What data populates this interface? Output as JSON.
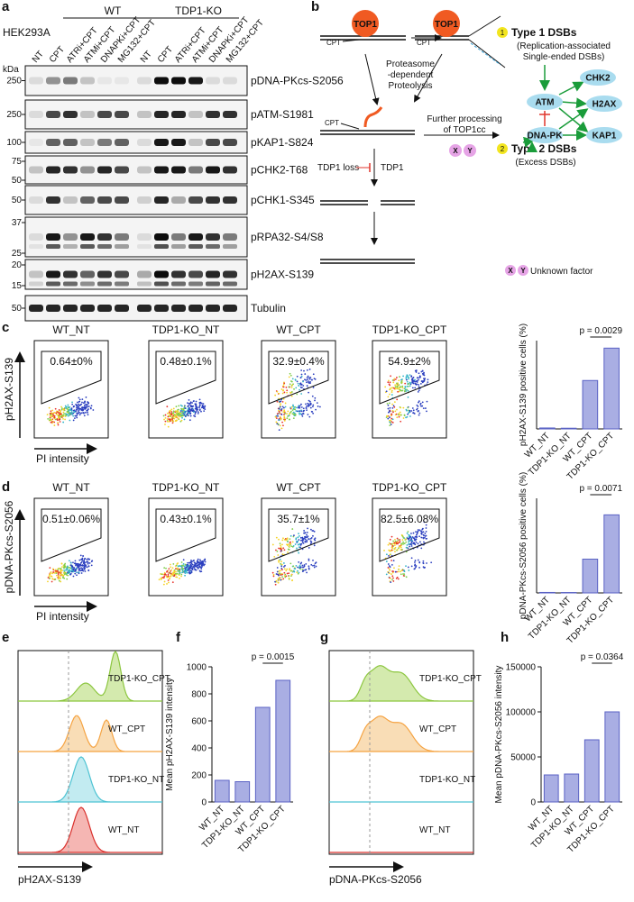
{
  "panel_labels": [
    "a",
    "b",
    "c",
    "d",
    "e",
    "f",
    "g",
    "h"
  ],
  "blot": {
    "cell_line": "HEK293A",
    "groups": [
      "WT",
      "TDP1-KO"
    ],
    "lanes": [
      "NT",
      "CPT",
      "ATRi+CPT",
      "ATMi+CPT",
      "DNAPKi+CPT",
      "MG132+CPT"
    ],
    "kda_label": "kDa",
    "rows": [
      {
        "antibody": "pDNA-PKcs-S2056",
        "markers": [
          "250"
        ]
      },
      {
        "antibody": "pATM-S1981",
        "markers": [
          "250"
        ]
      },
      {
        "antibody": "pKAP1-S824",
        "markers": [
          "100"
        ]
      },
      {
        "antibody": "pCHK2-T68",
        "markers": [
          "75",
          "50"
        ]
      },
      {
        "antibody": "pCHK1-S345",
        "markers": [
          "50"
        ]
      },
      {
        "antibody": "pRPA32-S4/S8",
        "markers": [
          "37",
          "25"
        ]
      },
      {
        "antibody": "pH2AX-S139",
        "markers": [
          "20",
          "15"
        ]
      },
      {
        "antibody": "Tubulin",
        "markers": [
          "50"
        ]
      }
    ]
  },
  "diagram": {
    "top1": "TOP1",
    "cpt": "CPT",
    "proteolysis": [
      "Proteasome",
      "-dependent",
      "Proteolysis"
    ],
    "type1": {
      "number": "1",
      "title": "Type 1 DSBs",
      "detail": [
        "(Replication-associated",
        "Single-ended DSBs)"
      ]
    },
    "type2": {
      "number": "2",
      "title": "Type 2 DSBs",
      "detail": "(Excess DSBs)"
    },
    "processing": [
      "Further processing",
      "of TOP1cc"
    ],
    "factors": [
      "X",
      "Y"
    ],
    "tdp1_loss": "TDP1 loss",
    "tdp1": "TDP1",
    "legend": "Unknown factor",
    "nodes": [
      "CHK2",
      "ATM",
      "H2AX",
      "DNA-PK",
      "KAP1"
    ]
  },
  "flow": [
    {
      "ylabel": "pH2AX-S139",
      "xlabel": "PI intensity",
      "plots": [
        {
          "title": "WT_NT",
          "gate": "0.64±0%"
        },
        {
          "title": "TDP1-KO_NT",
          "gate": "0.48±0.1%"
        },
        {
          "title": "WT_CPT",
          "gate": "32.9±0.4%"
        },
        {
          "title": "TDP1-KO_CPT",
          "gate": "54.9±2%"
        }
      ]
    },
    {
      "ylabel": "pDNA-PKcs-S2056",
      "xlabel": "PI intensity",
      "plots": [
        {
          "title": "WT_NT",
          "gate": "0.51±0.06%"
        },
        {
          "title": "TDP1-KO_NT",
          "gate": "0.43±0.1%"
        },
        {
          "title": "WT_CPT",
          "gate": "35.7±1%"
        },
        {
          "title": "TDP1-KO_CPT",
          "gate": "82.5±6.08%"
        }
      ]
    }
  ],
  "histograms": [
    {
      "xlabel": "pH2AX-S139",
      "traces": [
        "TDP1-KO_CPT",
        "WT_CPT",
        "TDP1-KO_NT",
        "WT_NT"
      ]
    },
    {
      "xlabel": "pDNA-PKcs-S2056",
      "traces": [
        "TDP1-KO_CPT",
        "WT_CPT",
        "TDP1-KO_NT",
        "WT_NT"
      ]
    }
  ],
  "chart_data": [
    {
      "type": "bar",
      "ylabel": "pH2AX-S139 positive cells (%)",
      "categories": [
        "WT_NT",
        "TDP1-KO_NT",
        "WT_CPT",
        "TDP1-KO_CPT"
      ],
      "values": [
        0.64,
        0.48,
        32.9,
        54.9
      ],
      "color": "#a9aee3",
      "ylim": [
        0,
        60
      ],
      "annotation": "p = 0.0029"
    },
    {
      "type": "bar",
      "ylabel": "pDNA-PKcs-S2056 positive cells (%)",
      "categories": [
        "WT_NT",
        "TDP1-KO_NT",
        "WT_CPT",
        "TDP1-KO_CPT"
      ],
      "values": [
        0.51,
        0.43,
        35.7,
        82.5
      ],
      "color": "#a9aee3",
      "ylim": [
        0,
        100
      ],
      "annotation": "p = 0.0071"
    },
    {
      "type": "bar",
      "ylabel": "Mean pH2AX-S139 intensity",
      "categories": [
        "WT_NT",
        "TDP1-KO_NT",
        "WT_CPT",
        "TDP1-KO_CPT"
      ],
      "values": [
        160,
        150,
        700,
        900
      ],
      "color": "#a9aee3",
      "ylim": [
        0,
        1000
      ],
      "yticks": [
        0,
        200,
        400,
        600,
        800,
        1000
      ],
      "annotation": "p = 0.0015"
    },
    {
      "type": "bar",
      "ylabel": "Mean pDNA-PKcs-S2056 intensity",
      "categories": [
        "WT_NT",
        "TDP1-KO_NT",
        "WT_CPT",
        "TDP1-KO_CPT"
      ],
      "values": [
        30000,
        31000,
        69000,
        100000
      ],
      "color": "#a9aee3",
      "ylim": [
        0,
        150000
      ],
      "yticks": [
        0,
        50000,
        100000,
        150000
      ],
      "annotation": "p = 0.0364"
    }
  ]
}
